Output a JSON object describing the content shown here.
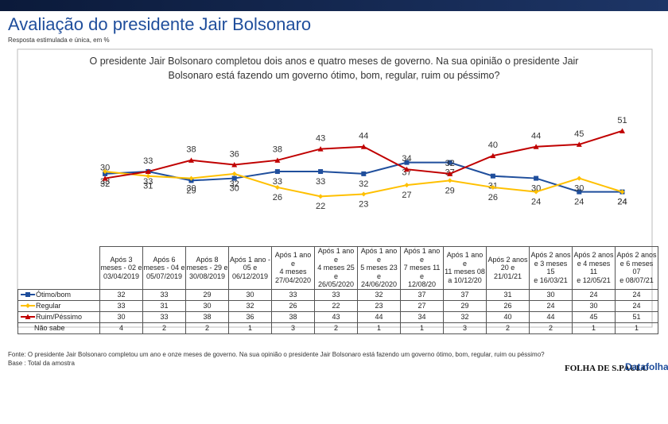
{
  "header": {
    "title": "Avaliação do presidente Jair Bolsonaro",
    "subtitle": "Resposta estimulada e única, em %"
  },
  "chart_data": {
    "type": "line",
    "question": "O presidente Jair Bolsonaro completou dois anos e quatro meses de governo. Na sua opinião o presidente Jair Bolsonaro está fazendo um governo ótimo, bom, regular, ruim ou péssimo?",
    "categories": [
      "Após 3\nmeses - 02 e\n03/04/2019",
      "Após 6\nmeses - 04 e\n05/07/2019",
      "Após 8\nmeses - 29 e\n30/08/2019",
      "Após 1 ano -\n05 e\n06/12/2019",
      "Após 1 ano e\n4 meses\n27/04/2020",
      "Após 1 ano e\n4 meses 25 e\n26/05/2020",
      "Após 1 ano e\n5 meses 23 e\n24/06/2020",
      "Após 1 ano e\n7 meses 11 e\n12/08/20",
      "Após 1 ano e\n11 meses 08\na 10/12/20",
      "Após 2 anos\n20 e\n21/01/21",
      "Após 2 anos\ne 3 meses 15\ne 16/03/21",
      "Após 2 anos\ne 4 meses 11\ne 12/05/21",
      "Após 2 anos\ne 6 meses 07\ne 08/07/21"
    ],
    "series": [
      {
        "name": "Ótimo/bom",
        "color": "#1f4e9c",
        "marker": "square",
        "label_side": "below",
        "values": [
          32,
          33,
          29,
          30,
          33,
          33,
          32,
          37,
          37,
          31,
          30,
          24,
          24
        ]
      },
      {
        "name": "Regular",
        "color": "#ffc000",
        "marker": "diamond",
        "label_side": "below",
        "values": [
          33,
          31,
          30,
          32,
          26,
          22,
          23,
          27,
          29,
          26,
          24,
          30,
          24
        ]
      },
      {
        "name": "Ruim/Péssimo",
        "color": "#c00000",
        "marker": "triangle",
        "label_side": "above",
        "values": [
          30,
          33,
          38,
          36,
          38,
          43,
          44,
          34,
          32,
          40,
          44,
          45,
          51
        ]
      }
    ],
    "extra_rows": [
      {
        "name": "Não sabe",
        "values": [
          4,
          2,
          2,
          1,
          3,
          2,
          1,
          1,
          3,
          2,
          2,
          1,
          1
        ]
      }
    ],
    "ylim": [
      20,
      52
    ]
  },
  "footer": {
    "source": "Fonte: O presidente Jair Bolsonaro completou um ano e onze meses de governo. Na sua opinião o presidente Jair Bolsonaro está fazendo um governo ótimo, bom, regular, ruim ou péssimo?",
    "base": "Base : Total da amostra",
    "logo1": "FOLHA DE S.PAULO",
    "logo2": "Datafolha"
  }
}
